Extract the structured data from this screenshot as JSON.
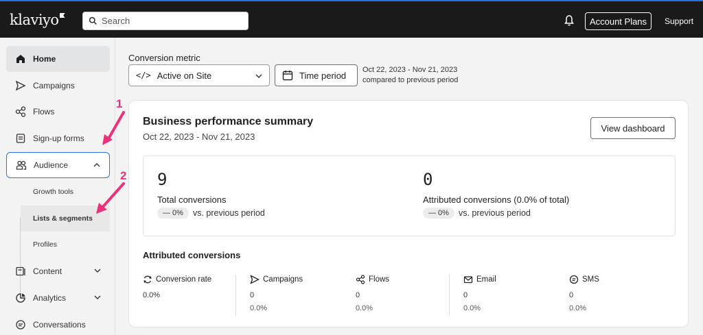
{
  "header": {
    "logo": "klaviyo",
    "search_placeholder": "Search",
    "account_button": "Account Plans",
    "support": "Support"
  },
  "sidebar": {
    "items": [
      {
        "label": "Home",
        "icon": "home-icon"
      },
      {
        "label": "Campaigns",
        "icon": "send-icon"
      },
      {
        "label": "Flows",
        "icon": "flows-icon"
      },
      {
        "label": "Sign-up forms",
        "icon": "form-icon"
      },
      {
        "label": "Audience",
        "icon": "people-icon"
      },
      {
        "label": "Content",
        "icon": "content-icon"
      },
      {
        "label": "Analytics",
        "icon": "analytics-icon"
      },
      {
        "label": "Conversations",
        "icon": "chat-icon"
      }
    ],
    "audience_sub": [
      "Growth tools",
      "Lists & segments",
      "Profiles"
    ]
  },
  "annotations": [
    "1",
    "2"
  ],
  "conversion": {
    "label": "Conversion metric",
    "metric": "Active on Site",
    "time_button": "Time period",
    "date_range": "Oct 22, 2023 - Nov 21, 2023",
    "compare_text": "compared to previous period"
  },
  "summary": {
    "title": "Business performance summary",
    "subtitle": "Oct 22, 2023 - Nov 21, 2023",
    "view_button": "View dashboard",
    "total": {
      "value": "9",
      "label": "Total conversions",
      "change": "— 0%",
      "compare": "vs. previous period"
    },
    "attributed": {
      "value": "0",
      "label": "Attributed conversions (0.0% of total)",
      "change": "— 0%",
      "compare": "vs. previous period"
    },
    "attr_title": "Attributed conversions",
    "columns": [
      {
        "label": "Conversion rate",
        "icon": "refresh-icon",
        "v1": "0.0%",
        "v2": ""
      },
      {
        "label": "Campaigns",
        "icon": "send-icon",
        "v1": "0",
        "v2": "0.0%"
      },
      {
        "label": "Flows",
        "icon": "flows-icon",
        "v1": "0",
        "v2": "0.0%"
      },
      {
        "label": "Email",
        "icon": "mail-icon",
        "v1": "0",
        "v2": "0.0%"
      },
      {
        "label": "SMS",
        "icon": "sms-icon",
        "v1": "0",
        "v2": "0.0%"
      }
    ]
  },
  "colors": {
    "accent": "#2f6fdc",
    "annotation": "#e9327a",
    "topbar": "#1a1a1a"
  }
}
